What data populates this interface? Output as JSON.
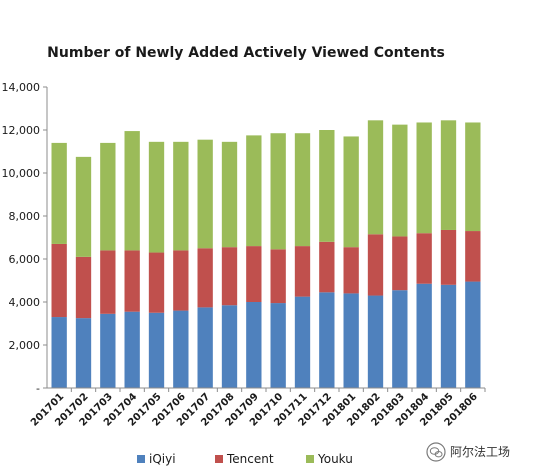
{
  "chart_data": {
    "type": "bar",
    "stacked": true,
    "title": "Number of Newly Added Actively Viewed Contents",
    "xlabel": "",
    "ylabel": "",
    "categories": [
      "201701",
      "201702",
      "201703",
      "201704",
      "201705",
      "201706",
      "201707",
      "201708",
      "201709",
      "201710",
      "201711",
      "201712",
      "201801",
      "201802",
      "201803",
      "201804",
      "201805",
      "201806"
    ],
    "series": [
      {
        "name": "iQiyi",
        "color": "#4f81bd",
        "values": [
          3300,
          3250,
          3450,
          3550,
          3500,
          3600,
          3750,
          3850,
          4000,
          3950,
          4250,
          4450,
          4400,
          4300,
          4550,
          4850,
          4800,
          4950
        ]
      },
      {
        "name": "Tencent",
        "color": "#c0504d",
        "values": [
          3400,
          2850,
          2950,
          2850,
          2800,
          2800,
          2750,
          2700,
          2600,
          2500,
          2350,
          2350,
          2150,
          2850,
          2500,
          2350,
          2550,
          2350
        ]
      },
      {
        "name": "Youku",
        "color": "#9bbb59",
        "values": [
          4700,
          4650,
          5000,
          5550,
          5150,
          5050,
          5050,
          4900,
          5150,
          5400,
          5250,
          5200,
          5150,
          5300,
          5200,
          5150,
          5100,
          5050
        ]
      }
    ],
    "ylim": [
      0,
      14000
    ],
    "yticks": [
      0,
      2000,
      4000,
      6000,
      8000,
      10000,
      12000,
      14000
    ],
    "ytick_labels": [
      "-",
      "2,000",
      "4,000",
      "6,000",
      "8,000",
      "10,000",
      "12,000",
      "14,000"
    ],
    "grid": false,
    "legend_position": "bottom"
  },
  "watermark": {
    "text": "阿尔法工场",
    "icon": "wechat-icon"
  }
}
